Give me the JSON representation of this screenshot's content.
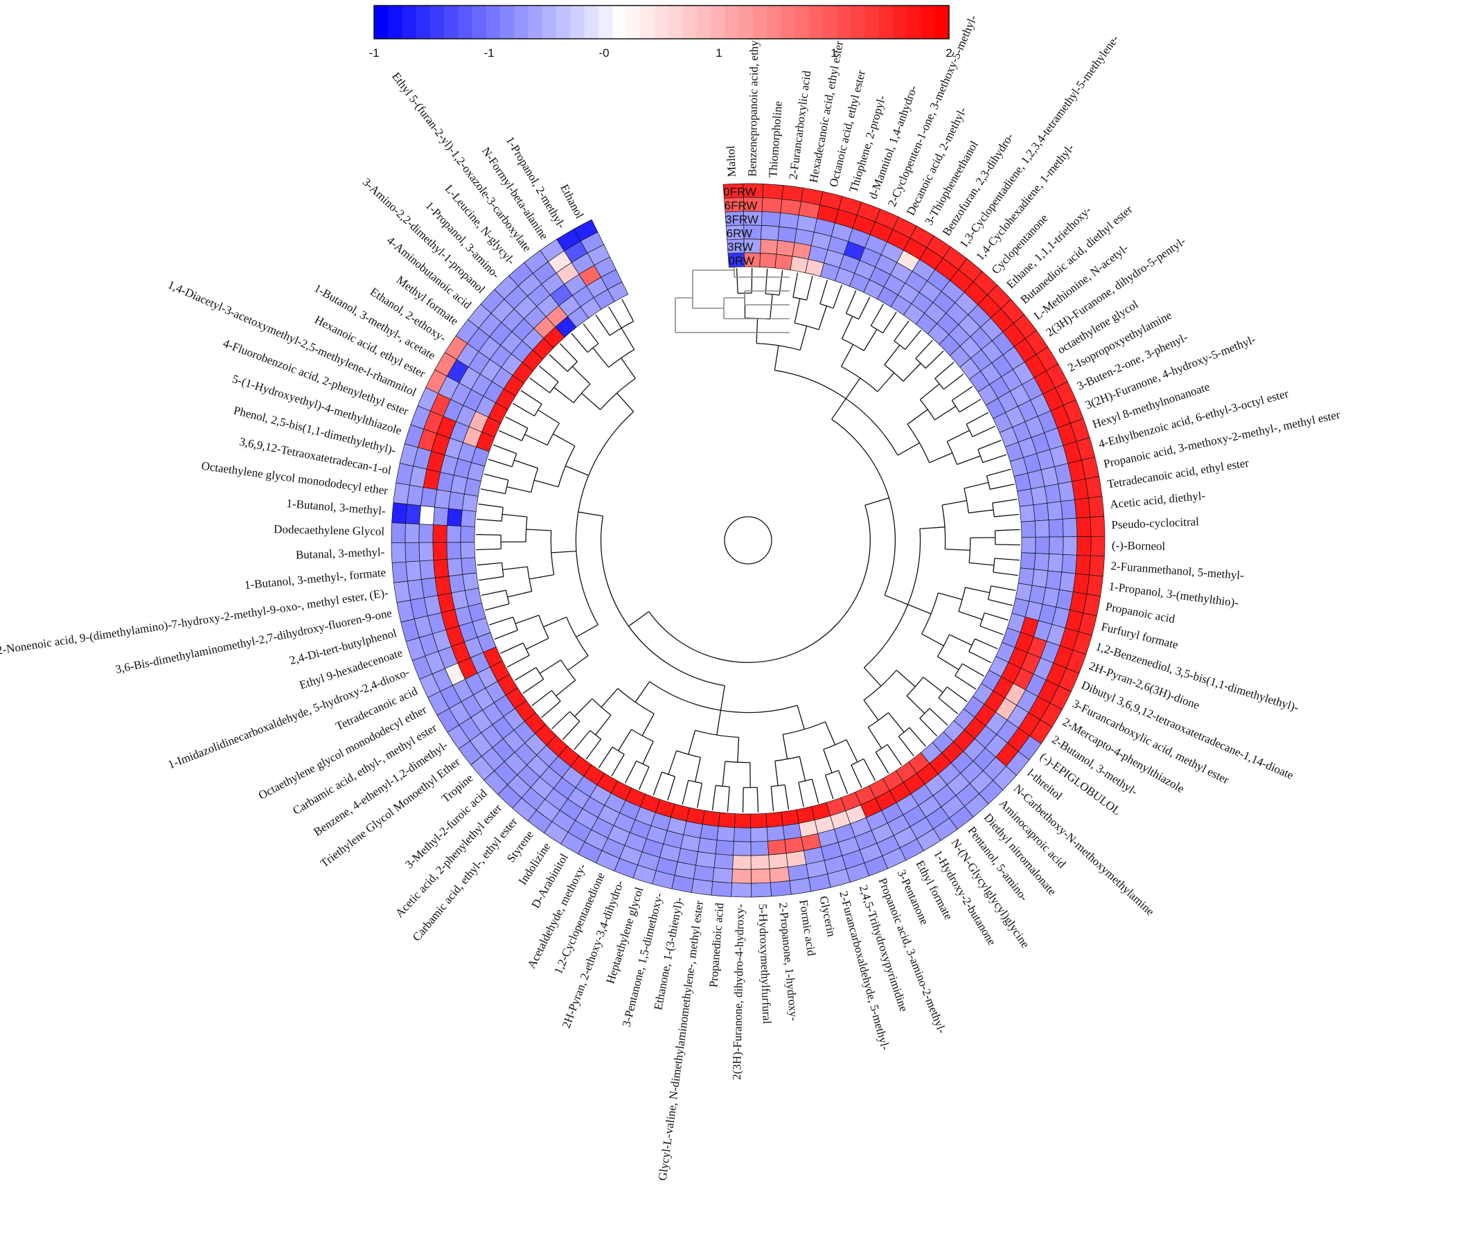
{
  "chart_data": {
    "type": "heatmap",
    "layout": "circular",
    "colorbar": {
      "ticks": [
        "-1",
        "-1",
        "-0",
        "1",
        "1",
        "2"
      ],
      "low_color": "#0000ff",
      "mid_color": "#ffffff",
      "high_color": "#ff0000",
      "vmin": -1.5,
      "vmax": 2
    },
    "rings": [
      "0FRW",
      "6FRW",
      "3FRW",
      "6RW",
      "3RW",
      "0RW"
    ],
    "default_value": -0.6,
    "compounds": [
      "Maltol",
      "Benzenepropanoic acid, ethyl ester",
      "Thiomorpholine",
      "2-Furancarboxylic acid",
      "Hexadecanoic acid, ethyl ester",
      "Octanoic acid, ethyl ester",
      "Thiophene, 2-propyl-",
      "d-Mannitol, 1,4-anhydro-",
      "2-Cyclopenten-1-one, 3-methoxy-5-methyl-",
      "Decanoic acid, 2-methyl-",
      "3-Thiopheneethanol",
      "Benzofuran, 2,3-dihydro-",
      "1,3-Cyclopentadiene, 1,2,3,4-tetramethyl-5-methylene-",
      "1,4-Cyclohexadiene, 1-methyl-",
      "Cyclopentanone",
      "Ethane, 1,1,1-triethoxy-",
      "Butanedioic acid, diethyl ester",
      "L-Methionine, N-acetyl-",
      "2(3H)-Furanone, dihydro-5-pentyl-",
      "octaethylene glycol",
      "2-Isopropoxyethylamine",
      "3-Buten-2-one, 3-phenyl-",
      "3(2H)-Furanone, 4-hydroxy-5-methyl-",
      "Hexyl 8-methylnonanoate",
      "4-Ethylbenzoic acid, 6-ethyl-3-octyl ester",
      "Propanoic acid, 3-methoxy-2-methyl-, methyl ester",
      "Tetradecanoic acid, ethyl ester",
      "Acetic acid, diethyl-",
      "Pseudo-cyclocitral",
      "(-)-Borneol",
      "2-Furanmethanol, 5-methyl-",
      "1-Propanol, 3-(methylthio)-",
      "Propanoic acid",
      "Furfuryl formate",
      "1,2-Benzenediol, 3,5-bis(1,1-dimethylethyl)-",
      "2H-Pyran-2,6(3H)-dione",
      "Dibutyl 3,6,9,12-tetraoxatetradecane-1,14-dioate",
      "3-Furancarboxylic acid, methyl ester",
      "2-Mercapto-4-phenylthiazole",
      "2-Butanol, 3-methyl-",
      "(-)-EPIGLOBULOL",
      "l-threitol",
      "N-Carbethoxy-N-methoxymethylamine",
      "Aminocaproic acid",
      "Diethyl nitromalonate",
      "Pentanol, 5-amino-",
      "N-(N-Glycylglycyl)glycine",
      "1-Hydroxy-2-butanone",
      "Ethyl formate",
      "3-Pentanone",
      "Propanoic acid, 3-amino-2-methyl-",
      "2,4,5-Trihydroxypyrimidine",
      "2-Furancarboxaldehyde, 5-methyl-",
      "Glycerin",
      "Formic acid",
      "2-Propanone, 1-hydroxy-",
      "5-Hydroxymethylfurfural",
      "2(3H)-Furanone, dihydro-4-hydroxy-",
      "Propanedioic acid",
      "Glycyl-L-valine, N-dimethylaminomethylene-, methyl ester",
      "Ethanone, 1-(3-thienyl)-",
      "3-Pentanone, 1,5-dimethoxy-",
      "Heptaethylene glycol",
      "2H-Pyran, 2-ethoxy-3,4-dihydro-",
      "1,2-Cyclopentanedione",
      "Acetaldehyde, methoxy-",
      "D-Arabinitol",
      "Indolizine",
      "Styrene",
      "Carbamic acid, ethyl-, ethyl ester",
      "Acetic acid, 2-phenylethyl ester",
      "3-Methyl-2-furoic acid",
      "Tropine",
      "Triethylene Glycol Monoethyl Ether",
      "Benzene, 4-ethenyl-1,2-dimethyl-",
      "Carbamic acid, ethyl-, methyl ester",
      "Octaethylene glycol monododecyl ether",
      "Tetradecanoic acid",
      "1-Imidazolidinecarboxaldehyde, 5-hydroxy-2,4-dioxo-",
      "Ethyl 9-hexadecenoate",
      "2,4-Di-tert-butylphenol",
      "3,6-Bis-dimethylaminomethyl-2,7-dihydroxy-fluoren-9-one",
      "2-Nonenoic acid, 9-(dimethylamino)-7-hydroxy-2-methyl-9-oxo-, methyl ester, (E)-",
      "1-Butanol, 3-methyl-, formate",
      "Butanal, 3-methyl-",
      "Dodecaethylene Glycol",
      "1-Butanol, 3-methyl-",
      "Octaethylene glycol monododecyl ether",
      "3,6,9,12-Tetraoxatetradecan-1-ol",
      "Phenol, 2,5-bis(1,1-dimethylethyl)-",
      "5-(1-Hydroxyethyl)-4-methylthiazole",
      "4-Fluorobenzoic acid, 2-phenylethyl ester",
      "1,4-Diacetyl-3-acetoxymethyl-2,5-methylene-l-rhamnitol",
      "Hexanoic acid, ethyl ester",
      "1-Butanol, 3-methyl-, acetate",
      "Ethanol, 2-ethoxy-",
      "Methyl formate",
      "4-Aminobutanoic acid",
      "3-Amino-2,2-dimethyl-1-propanol",
      "1-Propanol, 3-amino-",
      "L-Leucine, N-glycyl-",
      "Ethyl 5-(furan-2-yl)-1,2-oxazole-3-carboxylate",
      "N-Formyl-beta-alanine",
      "1-Propanol, 2-methyl-",
      "Ethanol"
    ],
    "blocks": [
      {
        "ring": 0,
        "from": 0,
        "to": 40,
        "value": 1.7
      },
      {
        "ring": 1,
        "from": 0,
        "to": 5,
        "value": 1.3
      },
      {
        "ring": 1,
        "from": 5,
        "to": 42,
        "value": 1.8
      },
      {
        "ring": 2,
        "from": 10,
        "to": 11,
        "value": 0.2
      },
      {
        "ring": 3,
        "from": 7,
        "to": 8,
        "value": -1.2
      },
      {
        "ring": 3,
        "from": 35,
        "to": 38,
        "value": 1.6
      },
      {
        "ring": 3,
        "from": 38,
        "to": 40,
        "value": 0.5
      },
      {
        "ring": 4,
        "from": 2,
        "to": 5,
        "value": 0.9
      },
      {
        "ring": 4,
        "from": 34,
        "to": 50,
        "value": 1.8
      },
      {
        "ring": 4,
        "from": 50,
        "to": 54,
        "value": 0.3
      },
      {
        "ring": 5,
        "from": 0,
        "to": 1,
        "value": -1.2
      },
      {
        "ring": 5,
        "from": 1,
        "to": 4,
        "value": 1.1
      },
      {
        "ring": 5,
        "from": 4,
        "to": 6,
        "value": 0.4
      },
      {
        "ring": 5,
        "from": 45,
        "to": 52,
        "value": 1.5
      },
      {
        "ring": 5,
        "from": 52,
        "to": 78,
        "value": 1.8
      },
      {
        "ring": 3,
        "from": 53,
        "to": 56,
        "value": 1.3
      },
      {
        "ring": 2,
        "from": 54,
        "to": 58,
        "value": 0.4
      },
      {
        "ring": 1,
        "from": 55,
        "to": 58,
        "value": 0.7
      },
      {
        "ring": 2,
        "from": 77,
        "to": 78,
        "value": 0.1
      },
      {
        "ring": 3,
        "from": 77,
        "to": 86,
        "value": 1.8
      },
      {
        "ring": 0,
        "from": 86,
        "to": 87,
        "value": -1.3
      },
      {
        "ring": 1,
        "from": 86,
        "to": 87,
        "value": -1.2
      },
      {
        "ring": 2,
        "from": 86,
        "to": 87,
        "value": 0.0
      },
      {
        "ring": 4,
        "from": 86,
        "to": 87,
        "value": -1.3
      },
      {
        "ring": 2,
        "from": 88,
        "to": 92,
        "value": 1.8
      },
      {
        "ring": 1,
        "from": 90,
        "to": 93,
        "value": 1.5
      },
      {
        "ring": 0,
        "from": 93,
        "to": 96,
        "value": 1.0
      },
      {
        "ring": 1,
        "from": 94,
        "to": 95,
        "value": -1.2
      },
      {
        "ring": 4,
        "from": 91,
        "to": 93,
        "value": 0.6
      },
      {
        "ring": 5,
        "from": 91,
        "to": 100,
        "value": 1.8
      },
      {
        "ring": 4,
        "from": 99,
        "to": 101,
        "value": 0.9
      },
      {
        "ring": 5,
        "from": 100,
        "to": 101,
        "value": -1.3
      },
      {
        "ring": 3,
        "from": 101,
        "to": 102,
        "value": -0.9
      },
      {
        "ring": 2,
        "from": 102,
        "to": 103,
        "value": 0.4
      },
      {
        "ring": 1,
        "from": 102,
        "to": 103,
        "value": 0.2
      },
      {
        "ring": 0,
        "from": 103,
        "to": 105,
        "value": -1.3
      },
      {
        "ring": 1,
        "from": 103,
        "to": 104,
        "value": -1.0
      },
      {
        "ring": 3,
        "from": 103,
        "to": 104,
        "value": 1.2
      }
    ]
  }
}
